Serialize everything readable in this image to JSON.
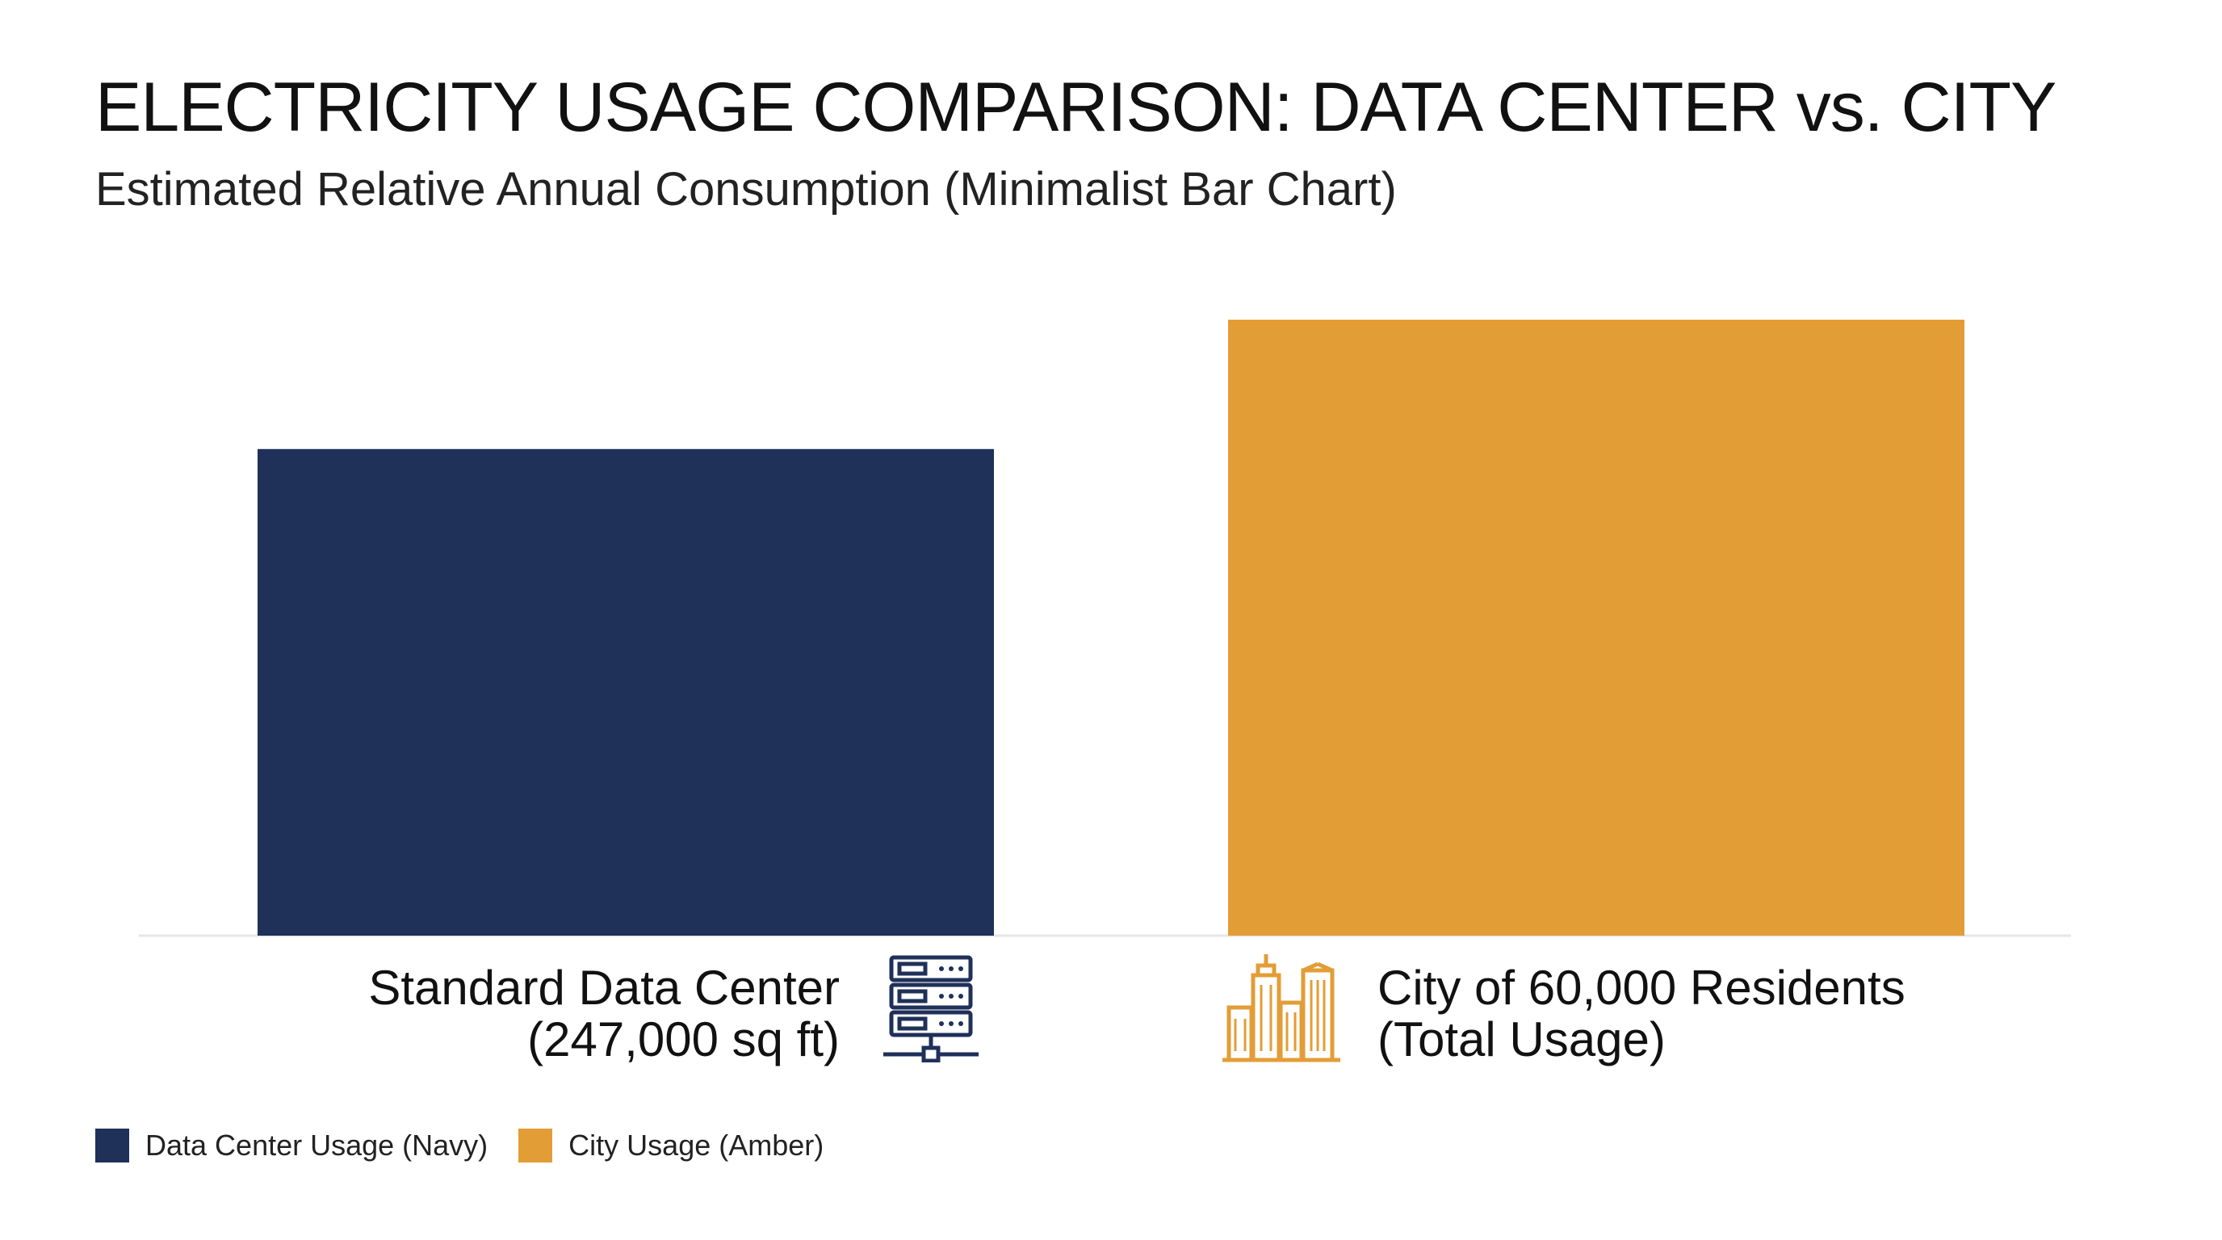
{
  "title": "ELECTRICITY USAGE COMPARISON: DATA CENTER vs. CITY",
  "subtitle": "Estimated Relative Annual Consumption (Minimalist Bar Chart)",
  "colors": {
    "navy": "#1f3059",
    "amber": "#e39d36",
    "baseline": "#e6e6e6"
  },
  "chart_data": {
    "type": "bar",
    "title": "ELECTRICITY USAGE COMPARISON: DATA CENTER vs. CITY",
    "subtitle": "Estimated Relative Annual Consumption (Minimalist Bar Chart)",
    "categories": [
      {
        "line1": "Standard Data Center",
        "line2": "(247,000 sq ft)",
        "icon": "server-rack-icon"
      },
      {
        "line1": "City of 60,000 Residents",
        "line2": "(Total Usage)",
        "icon": "city-buildings-icon"
      }
    ],
    "values": [
      0.79,
      1.0
    ],
    "ylim": [
      0,
      1
    ],
    "grid": false,
    "legend_position": "bottom-left",
    "legend": [
      {
        "label": "Data Center Usage (Navy)",
        "color": "#1f3059"
      },
      {
        "label": "City Usage (Amber)",
        "color": "#e39d36"
      }
    ]
  }
}
